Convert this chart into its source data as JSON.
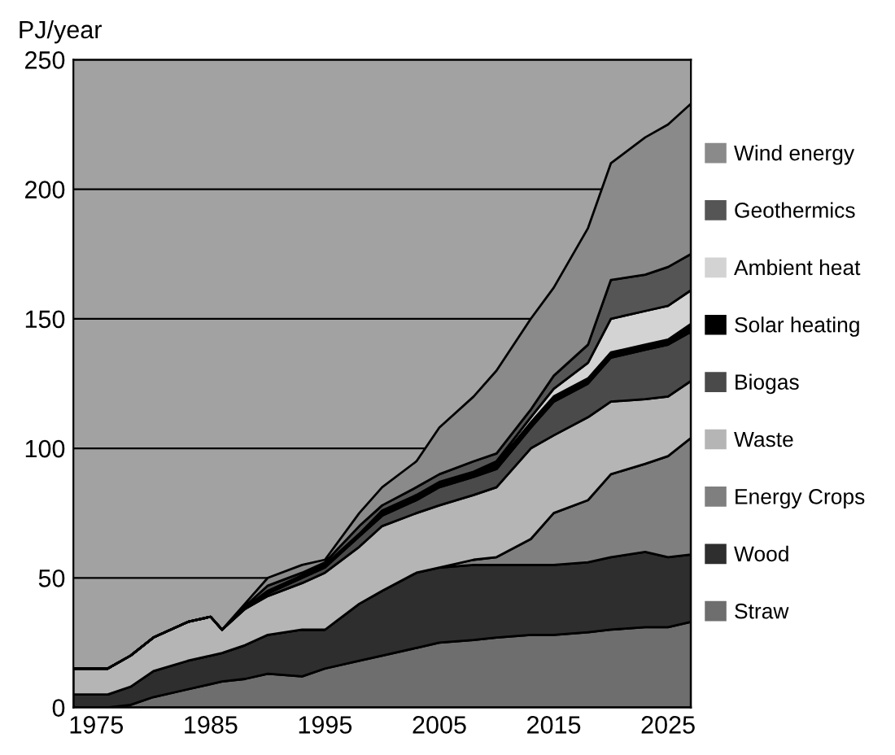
{
  "chart_data": {
    "type": "area",
    "stacked": true,
    "ylabel": "PJ/year",
    "x": [
      1973,
      1976,
      1978,
      1980,
      1983,
      1985,
      1986,
      1988,
      1990,
      1993,
      1995,
      1998,
      2000,
      2003,
      2005,
      2008,
      2010,
      2013,
      2015,
      2018,
      2020,
      2023,
      2025,
      2027
    ],
    "series": [
      {
        "name": "Straw",
        "color": "#6e6e6e",
        "values": [
          0,
          0,
          1,
          4,
          7,
          9,
          10,
          11,
          13,
          12,
          15,
          18,
          20,
          23,
          25,
          26,
          27,
          28,
          28,
          29,
          30,
          31,
          31,
          33
        ]
      },
      {
        "name": "Wood",
        "color": "#2e2e2e",
        "values": [
          5,
          5,
          7,
          10,
          11,
          11,
          11,
          13,
          15,
          18,
          15,
          22,
          25,
          29,
          29,
          29,
          28,
          27,
          27,
          27,
          28,
          29,
          27,
          26
        ]
      },
      {
        "name": "Energy Crops",
        "color": "#7f7f7f",
        "values": [
          0,
          0,
          0,
          0,
          0,
          0,
          0,
          0,
          0,
          0,
          0,
          0,
          0,
          0,
          0,
          2,
          3,
          10,
          20,
          24,
          32,
          34,
          39,
          45
        ]
      },
      {
        "name": "Waste",
        "color": "#b5b5b5",
        "values": [
          10,
          10,
          12,
          13,
          15,
          15,
          9,
          14,
          15,
          18,
          22,
          22,
          25,
          23,
          24,
          25,
          27,
          35,
          30,
          32,
          28,
          25,
          23,
          22
        ]
      },
      {
        "name": "Biogas",
        "color": "#4a4a4a",
        "values": [
          0,
          0,
          0,
          0,
          0,
          0,
          0,
          0,
          1,
          2,
          2,
          4,
          4,
          5,
          7,
          7,
          7,
          8,
          13,
          13,
          17,
          19,
          20,
          19
        ]
      },
      {
        "name": "Solar heating",
        "color": "#000000",
        "values": [
          0,
          0,
          0,
          0,
          0,
          0,
          0,
          0.5,
          1,
          1,
          1,
          1,
          2,
          2,
          2,
          2,
          2,
          2,
          2,
          2,
          2,
          2,
          2,
          3
        ]
      },
      {
        "name": "Ambient heat",
        "color": "#d3d3d3",
        "values": [
          0,
          0,
          0,
          0,
          0,
          0,
          0,
          0,
          0,
          0,
          0,
          0,
          0,
          0,
          0,
          0,
          1,
          2,
          3,
          6,
          13,
          13,
          13,
          13
        ]
      },
      {
        "name": "Geothermics",
        "color": "#555555",
        "values": [
          0,
          0,
          0,
          0,
          0,
          0,
          0,
          0.5,
          2,
          1,
          1,
          3,
          2,
          3,
          3,
          4,
          3,
          3,
          5,
          7,
          15,
          14,
          15,
          14
        ]
      },
      {
        "name": "Wind energy",
        "color": "#8a8a8a",
        "values": [
          0,
          0,
          0,
          0,
          0,
          0,
          0,
          1,
          3,
          3,
          1,
          5,
          7,
          10,
          18,
          25,
          32,
          35,
          34,
          45,
          45,
          53,
          55,
          58
        ]
      }
    ],
    "xlim": [
      1973,
      2027
    ],
    "xticks": [
      1975,
      1985,
      1995,
      2005,
      2015,
      2025
    ],
    "ylim": [
      0,
      250
    ],
    "yticks": [
      0,
      50,
      100,
      150,
      200,
      250
    ],
    "grid": "y",
    "legend": "right"
  }
}
